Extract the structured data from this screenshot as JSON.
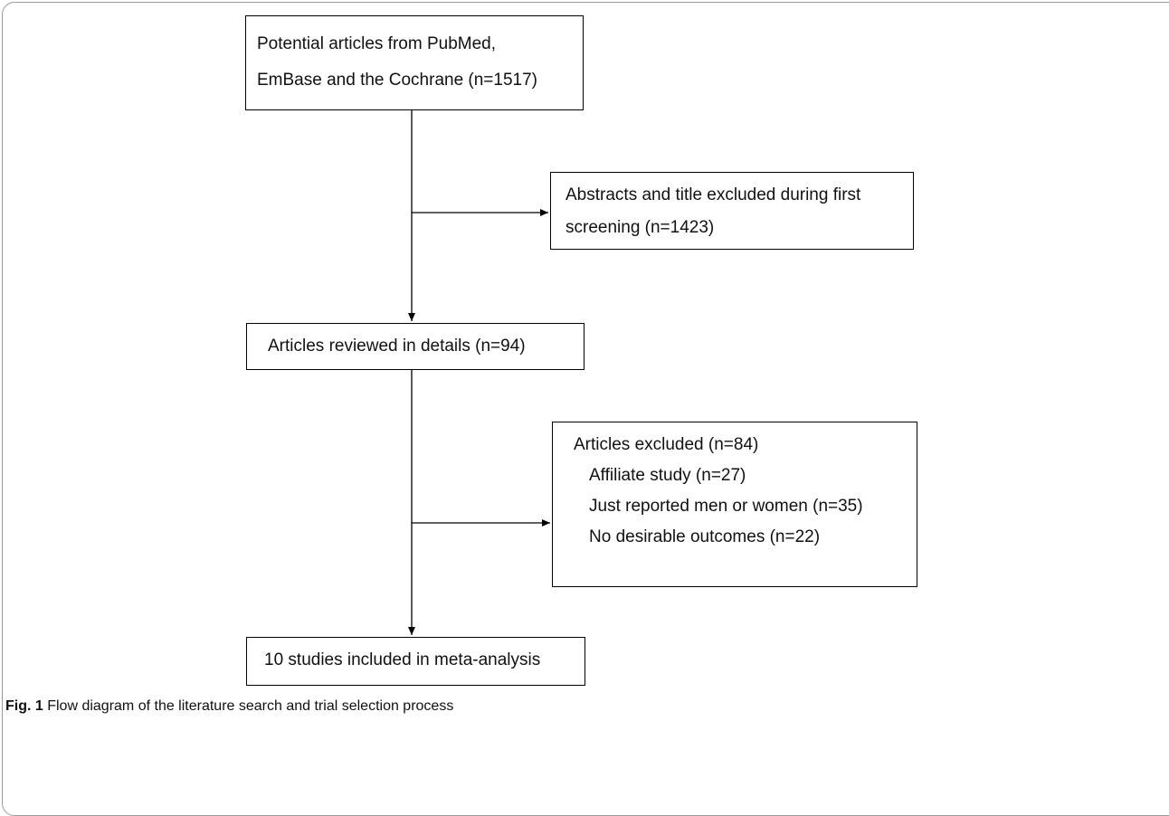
{
  "diagram": {
    "boxes": {
      "box1": [
        "Potential articles from PubMed,",
        "EmBase and the Cochrane (n=1517)"
      ],
      "box2": [
        "Abstracts and title excluded during first",
        "screening (n=1423)"
      ],
      "box3": "Articles reviewed in details (n=94)",
      "box4": {
        "title": "Articles excluded (n=84)",
        "reasons": [
          "Affiliate study (n=27)",
          "Just reported men or women (n=35)",
          "No desirable outcomes (n=22)"
        ]
      },
      "box5": "10 studies included in meta-analysis"
    }
  },
  "caption": {
    "label": "Fig. 1",
    "text": " Flow diagram of the literature search and trial selection process"
  }
}
